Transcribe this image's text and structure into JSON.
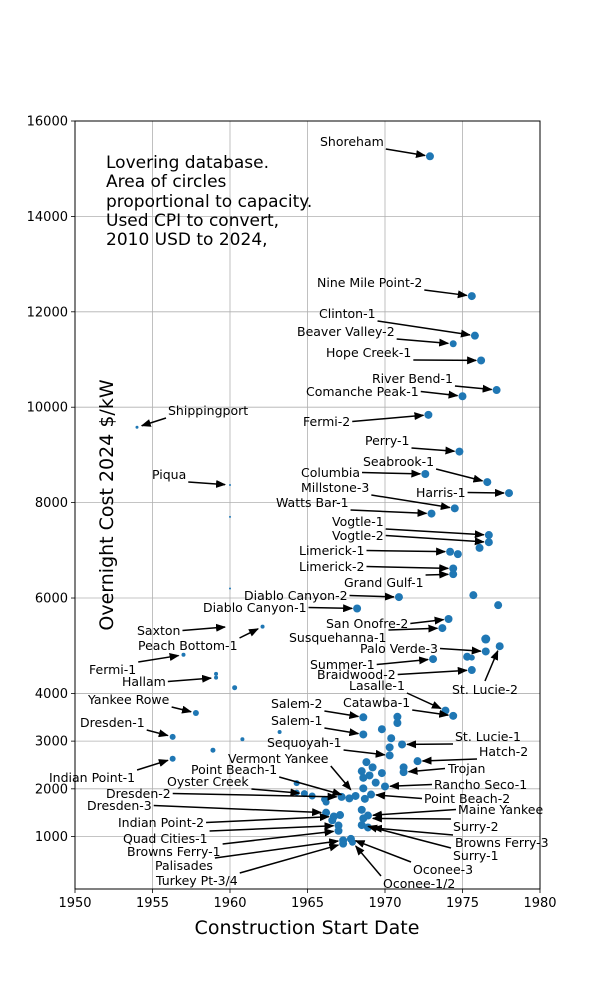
{
  "chart_data": {
    "type": "scatter",
    "title": "",
    "xlabel": "Construction Start Date",
    "ylabel": "Overnight Cost 2024 $/kW",
    "xlim": [
      1950,
      1980
    ],
    "ylim": [
      -100,
      16000
    ],
    "xticks": [
      1950,
      1955,
      1960,
      1965,
      1970,
      1975,
      1980
    ],
    "yticks": [
      1000,
      2000,
      3000,
      4000,
      6000,
      8000,
      10000,
      12000,
      14000,
      16000
    ],
    "grid": true,
    "note_lines": [
      "Lovering database.",
      "Area of circles",
      "proportional to capacity.",
      "Used CPI to convert,",
      "2010 USD to 2024,"
    ],
    "marker_color": "#1f77b4",
    "points": [
      {
        "x": 1972.9,
        "y": 15260,
        "r": 4
      },
      {
        "x": 1975.6,
        "y": 12330,
        "r": 4
      },
      {
        "x": 1975.8,
        "y": 11500,
        "r": 4
      },
      {
        "x": 1974.4,
        "y": 11330,
        "r": 3.5
      },
      {
        "x": 1976.2,
        "y": 10980,
        "r": 4
      },
      {
        "x": 1977.2,
        "y": 10360,
        "r": 4
      },
      {
        "x": 1975.0,
        "y": 10230,
        "r": 4
      },
      {
        "x": 1972.8,
        "y": 9840,
        "r": 4
      },
      {
        "x": 1974.8,
        "y": 9070,
        "r": 4
      },
      {
        "x": 1976.6,
        "y": 8430,
        "r": 4
      },
      {
        "x": 1978.0,
        "y": 8200,
        "r": 4
      },
      {
        "x": 1974.5,
        "y": 7880,
        "r": 4
      },
      {
        "x": 1973.0,
        "y": 7770,
        "r": 4
      },
      {
        "x": 1972.6,
        "y": 8600,
        "r": 4
      },
      {
        "x": 1954.0,
        "y": 9580,
        "r": 1.5
      },
      {
        "x": 1960.0,
        "y": 8370,
        "r": 1
      },
      {
        "x": 1960.0,
        "y": 7700,
        "r": 1
      },
      {
        "x": 1960.0,
        "y": 6200,
        "r": 1
      },
      {
        "x": 1976.7,
        "y": 7320,
        "r": 4
      },
      {
        "x": 1976.7,
        "y": 7170,
        "r": 4
      },
      {
        "x": 1976.1,
        "y": 7050,
        "r": 4
      },
      {
        "x": 1974.2,
        "y": 6970,
        "r": 4
      },
      {
        "x": 1974.7,
        "y": 6920,
        "r": 4
      },
      {
        "x": 1974.4,
        "y": 6620,
        "r": 4
      },
      {
        "x": 1974.4,
        "y": 6500,
        "r": 4
      },
      {
        "x": 1975.7,
        "y": 6060,
        "r": 4
      },
      {
        "x": 1977.3,
        "y": 5850,
        "r": 4
      },
      {
        "x": 1970.9,
        "y": 6020,
        "r": 4
      },
      {
        "x": 1968.2,
        "y": 5780,
        "r": 4
      },
      {
        "x": 1974.1,
        "y": 5560,
        "r": 4
      },
      {
        "x": 1973.7,
        "y": 5370,
        "r": 4
      },
      {
        "x": 1976.5,
        "y": 5140,
        "r": 4.5
      },
      {
        "x": 1976.5,
        "y": 4880,
        "r": 4
      },
      {
        "x": 1977.4,
        "y": 4990,
        "r": 4
      },
      {
        "x": 1975.3,
        "y": 4770,
        "r": 4
      },
      {
        "x": 1975.6,
        "y": 4750,
        "r": 3
      },
      {
        "x": 1973.1,
        "y": 4720,
        "r": 4
      },
      {
        "x": 1975.6,
        "y": 4490,
        "r": 4
      },
      {
        "x": 1962.1,
        "y": 5400,
        "r": 2
      },
      {
        "x": 1957.0,
        "y": 4810,
        "r": 2
      },
      {
        "x": 1959.1,
        "y": 4410,
        "r": 2
      },
      {
        "x": 1959.1,
        "y": 4330,
        "r": 2
      },
      {
        "x": 1960.3,
        "y": 4120,
        "r": 2.5
      },
      {
        "x": 1957.8,
        "y": 3590,
        "r": 3
      },
      {
        "x": 1956.3,
        "y": 3090,
        "r": 3
      },
      {
        "x": 1956.3,
        "y": 2630,
        "r": 3
      },
      {
        "x": 1958.9,
        "y": 2810,
        "r": 2.5
      },
      {
        "x": 1960.8,
        "y": 3040,
        "r": 2
      },
      {
        "x": 1963.2,
        "y": 3190,
        "r": 2
      },
      {
        "x": 1973.9,
        "y": 3640,
        "r": 4
      },
      {
        "x": 1974.4,
        "y": 3530,
        "r": 4
      },
      {
        "x": 1968.6,
        "y": 3500,
        "r": 4
      },
      {
        "x": 1968.6,
        "y": 3140,
        "r": 4
      },
      {
        "x": 1970.8,
        "y": 3510,
        "r": 4
      },
      {
        "x": 1970.8,
        "y": 3380,
        "r": 4
      },
      {
        "x": 1969.8,
        "y": 3250,
        "r": 4
      },
      {
        "x": 1971.1,
        "y": 2930,
        "r": 4
      },
      {
        "x": 1970.4,
        "y": 3060,
        "r": 4
      },
      {
        "x": 1970.3,
        "y": 2870,
        "r": 4
      },
      {
        "x": 1970.3,
        "y": 2700,
        "r": 4
      },
      {
        "x": 1972.1,
        "y": 2580,
        "r": 4
      },
      {
        "x": 1971.2,
        "y": 2450,
        "r": 4
      },
      {
        "x": 1971.2,
        "y": 2350,
        "r": 4
      },
      {
        "x": 1968.8,
        "y": 2560,
        "r": 4
      },
      {
        "x": 1969.2,
        "y": 2450,
        "r": 4
      },
      {
        "x": 1968.5,
        "y": 2370,
        "r": 4
      },
      {
        "x": 1969.0,
        "y": 2280,
        "r": 4
      },
      {
        "x": 1969.8,
        "y": 2330,
        "r": 4
      },
      {
        "x": 1968.6,
        "y": 2230,
        "r": 4
      },
      {
        "x": 1969.4,
        "y": 2130,
        "r": 4
      },
      {
        "x": 1970.0,
        "y": 2050,
        "r": 4
      },
      {
        "x": 1968.6,
        "y": 2010,
        "r": 4
      },
      {
        "x": 1969.1,
        "y": 1880,
        "r": 4
      },
      {
        "x": 1968.7,
        "y": 1790,
        "r": 4
      },
      {
        "x": 1967.7,
        "y": 1800,
        "r": 4
      },
      {
        "x": 1968.1,
        "y": 1850,
        "r": 4
      },
      {
        "x": 1967.2,
        "y": 1830,
        "r": 4
      },
      {
        "x": 1966.1,
        "y": 1780,
        "r": 3.5
      },
      {
        "x": 1965.3,
        "y": 1850,
        "r": 3.5
      },
      {
        "x": 1964.8,
        "y": 1900,
        "r": 3.5
      },
      {
        "x": 1964.3,
        "y": 2120,
        "r": 3
      },
      {
        "x": 1964.3,
        "y": 1920,
        "r": 3
      },
      {
        "x": 1966.2,
        "y": 1720,
        "r": 3.5
      },
      {
        "x": 1966.2,
        "y": 1500,
        "r": 4
      },
      {
        "x": 1966.7,
        "y": 1420,
        "r": 4
      },
      {
        "x": 1967.1,
        "y": 1450,
        "r": 4
      },
      {
        "x": 1966.6,
        "y": 1340,
        "r": 4
      },
      {
        "x": 1967.0,
        "y": 1230,
        "r": 4
      },
      {
        "x": 1967.0,
        "y": 1120,
        "r": 4
      },
      {
        "x": 1967.3,
        "y": 920,
        "r": 4
      },
      {
        "x": 1967.3,
        "y": 850,
        "r": 4
      },
      {
        "x": 1967.8,
        "y": 950,
        "r": 4
      },
      {
        "x": 1967.9,
        "y": 880,
        "r": 3.5
      },
      {
        "x": 1968.5,
        "y": 1560,
        "r": 4
      },
      {
        "x": 1968.6,
        "y": 1380,
        "r": 4
      },
      {
        "x": 1968.5,
        "y": 1240,
        "r": 4
      },
      {
        "x": 1968.9,
        "y": 1190,
        "r": 4
      },
      {
        "x": 1968.9,
        "y": 1440,
        "r": 4
      }
    ],
    "annotations": [
      {
        "label": "Shoreham",
        "x": 1972.9,
        "y": 15260
      },
      {
        "label": "Nine Mile Point-2",
        "x": 1975.6,
        "y": 12330
      },
      {
        "label": "Clinton-1",
        "x": 1975.8,
        "y": 11500
      },
      {
        "label": "Beaver Valley-2",
        "x": 1974.4,
        "y": 11330
      },
      {
        "label": "Hope Creek-1",
        "x": 1976.2,
        "y": 10980
      },
      {
        "label": "River Bend-1",
        "x": 1977.2,
        "y": 10360
      },
      {
        "label": "Comanche Peak-1",
        "x": 1975.0,
        "y": 10230
      },
      {
        "label": "Fermi-2",
        "x": 1972.8,
        "y": 9840
      },
      {
        "label": "Shippingport",
        "x": 1954.0,
        "y": 9580
      },
      {
        "label": "Perry-1",
        "x": 1974.8,
        "y": 9070
      },
      {
        "label": "Piqua",
        "x": 1960.0,
        "y": 8370
      },
      {
        "label": "Seabrook-1",
        "x": 1976.6,
        "y": 8430
      },
      {
        "label": "Columbia",
        "x": 1972.6,
        "y": 8600
      },
      {
        "label": "Harris-1",
        "x": 1978.0,
        "y": 8200
      },
      {
        "label": "Millstone-3",
        "x": 1974.5,
        "y": 7880
      },
      {
        "label": "Watts Bar-1",
        "x": 1973.0,
        "y": 7770
      },
      {
        "label": "Vogtle-1",
        "x": 1976.7,
        "y": 7320
      },
      {
        "label": "Vogtle-2",
        "x": 1976.7,
        "y": 7170
      },
      {
        "label": "Limerick-1",
        "x": 1974.2,
        "y": 6970
      },
      {
        "label": "Limerick-2",
        "x": 1974.4,
        "y": 6620
      },
      {
        "label": "Grand Gulf-1",
        "x": 1974.4,
        "y": 6500
      },
      {
        "label": "Diablo Canyon-2",
        "x": 1970.9,
        "y": 6020
      },
      {
        "label": "Diablo Canyon-1",
        "x": 1968.2,
        "y": 5780
      },
      {
        "label": "San Onofre-2",
        "x": 1974.1,
        "y": 5560
      },
      {
        "label": "Saxton",
        "x": 1960.0,
        "y": 5400
      },
      {
        "label": "Susquehanna-1",
        "x": 1973.7,
        "y": 5370
      },
      {
        "label": "Peach Bottom-1",
        "x": 1962.1,
        "y": 5400
      },
      {
        "label": "Palo Verde-3",
        "x": 1976.5,
        "y": 4880
      },
      {
        "label": "Fermi-1",
        "x": 1957.0,
        "y": 4810
      },
      {
        "label": "Summer-1",
        "x": 1973.1,
        "y": 4720
      },
      {
        "label": "Braidwood-2",
        "x": 1975.6,
        "y": 4490
      },
      {
        "label": "Hallam",
        "x": 1959.1,
        "y": 4330
      },
      {
        "label": "Lasalle-1",
        "x": 1973.9,
        "y": 3640
      },
      {
        "label": "St. Lucie-2",
        "x": 1977.4,
        "y": 4990
      },
      {
        "label": "Yankee Rowe",
        "x": 1957.8,
        "y": 3590
      },
      {
        "label": "Catawba-1",
        "x": 1974.4,
        "y": 3530
      },
      {
        "label": "Salem-2",
        "x": 1968.6,
        "y": 3500
      },
      {
        "label": "Dresden-1",
        "x": 1956.3,
        "y": 3090
      },
      {
        "label": "Salem-1",
        "x": 1968.6,
        "y": 3140
      },
      {
        "label": "St. Lucie-1",
        "x": 1971.1,
        "y": 2930
      },
      {
        "label": "Sequoyah-1",
        "x": 1970.3,
        "y": 2700
      },
      {
        "label": "Hatch-2",
        "x": 1972.1,
        "y": 2580
      },
      {
        "label": "Vermont Yankee",
        "x": 1968.0,
        "y": 1900
      },
      {
        "label": "Trojan",
        "x": 1971.2,
        "y": 2350
      },
      {
        "label": "Point Beach-1",
        "x": 1967.5,
        "y": 1850
      },
      {
        "label": "Indian Point-1",
        "x": 1956.3,
        "y": 2630
      },
      {
        "label": "Rancho Seco-1",
        "x": 1970.0,
        "y": 2050
      },
      {
        "label": "Oyster Creek",
        "x": 1964.8,
        "y": 1900
      },
      {
        "label": "Dresden-2",
        "x": 1967.2,
        "y": 1830
      },
      {
        "label": "Point Beach-2",
        "x": 1969.1,
        "y": 1880
      },
      {
        "label": "Dresden-3",
        "x": 1966.2,
        "y": 1500
      },
      {
        "label": "Maine Yankee",
        "x": 1968.9,
        "y": 1440
      },
      {
        "label": "Indian Point-2",
        "x": 1966.7,
        "y": 1420
      },
      {
        "label": "Surry-2",
        "x": 1968.9,
        "y": 1380
      },
      {
        "label": "Quad Cities-1",
        "x": 1967.0,
        "y": 1230
      },
      {
        "label": "Browns Ferry-3",
        "x": 1968.9,
        "y": 1190
      },
      {
        "label": "Browns Ferry-1",
        "x": 1967.0,
        "y": 1120
      },
      {
        "label": "Surry-1",
        "x": 1968.6,
        "y": 1240
      },
      {
        "label": "Palisades",
        "x": 1967.3,
        "y": 920
      },
      {
        "label": "Oconee-3",
        "x": 1967.8,
        "y": 950
      },
      {
        "label": "Turkey Pt-3/4",
        "x": 1967.3,
        "y": 850
      },
      {
        "label": "Oconee-1/2",
        "x": 1967.9,
        "y": 880
      }
    ]
  }
}
